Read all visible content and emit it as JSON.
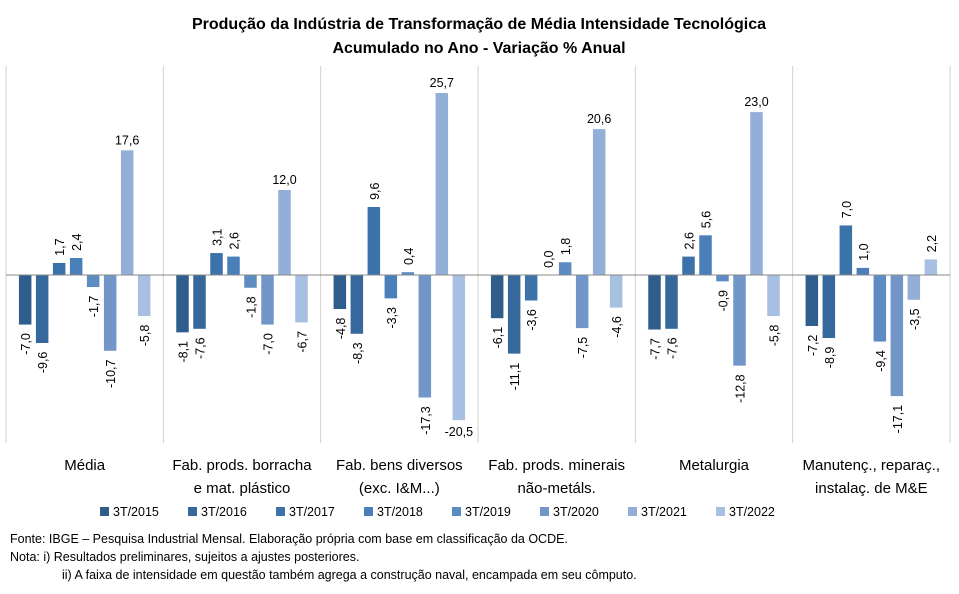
{
  "chart_data": {
    "type": "bar",
    "title": "Produção da Indústria de Transformação de Média Intensidade Tecnológica",
    "subtitle": "Acumulado no Ano - Variação % Anual",
    "categories": [
      [
        "Média"
      ],
      [
        "Fab. prods. borracha",
        "e mat. plástico"
      ],
      [
        "Fab. bens diversos",
        "(exc. I&M...)"
      ],
      [
        "Fab. prods. minerais",
        "não-metáls."
      ],
      [
        "Metalurgia"
      ],
      [
        "Manutenç., reparaç.,",
        "instalaç. de M&E"
      ]
    ],
    "series": [
      {
        "name": "3T/2015",
        "color": "#2f5d8c",
        "values": [
          -7.0,
          -8.1,
          -4.8,
          -6.1,
          -7.7,
          -7.2
        ],
        "labels": [
          "-7,0",
          "-8,1",
          "-4,8",
          "-6,1",
          "-7,7",
          "-7,2"
        ]
      },
      {
        "name": "3T/2016",
        "color": "#36689b",
        "values": [
          -9.6,
          -7.6,
          -8.3,
          -11.1,
          -7.6,
          -8.9
        ],
        "labels": [
          "-9,6",
          "-7,6",
          "-8,3",
          "-11,1",
          "-7,6",
          "-8,9"
        ]
      },
      {
        "name": "3T/2017",
        "color": "#3c72aa",
        "values": [
          1.7,
          3.1,
          9.6,
          -3.6,
          2.6,
          7.0
        ],
        "labels": [
          "1,7",
          "3,1",
          "9,6",
          "-3,6",
          "2,6",
          "7,0"
        ]
      },
      {
        "name": "3T/2018",
        "color": "#4a7fba",
        "values": [
          2.4,
          2.6,
          -3.3,
          0.0,
          5.6,
          1.0
        ],
        "labels": [
          "2,4",
          "2,6",
          "-3,3",
          "0,0",
          "5,6",
          "1,0"
        ]
      },
      {
        "name": "3T/2019",
        "color": "#5d8cc3",
        "values": [
          -1.7,
          -1.8,
          0.4,
          1.8,
          -0.9,
          -9.4
        ],
        "labels": [
          "-1,7",
          "-1,8",
          "0,4",
          "1,8",
          "-0,9",
          "-9,4"
        ]
      },
      {
        "name": "3T/2020",
        "color": "#7396c8",
        "values": [
          -10.7,
          -7.0,
          -17.3,
          -7.5,
          -12.8,
          -17.1
        ],
        "labels": [
          "-10,7",
          "-7,0",
          "-17,3",
          "-7,5",
          "-12,8",
          "-17,1"
        ]
      },
      {
        "name": "3T/2021",
        "color": "#93aed7",
        "values": [
          17.6,
          12.0,
          25.7,
          20.6,
          23.0,
          -3.5
        ],
        "labels": [
          "17,6",
          "12,0",
          "25,7",
          "20,6",
          "23,0",
          "-3,5"
        ]
      },
      {
        "name": "3T/2022",
        "color": "#a7bfe0",
        "values": [
          -5.8,
          -6.7,
          -20.5,
          -4.6,
          -5.8,
          2.2
        ],
        "labels": [
          "-5,8",
          "-6,7",
          "-20,5",
          "-4,6",
          "-5,8",
          "2,2"
        ]
      }
    ],
    "ylim": [
      -23.5,
      30.5
    ],
    "grid": false,
    "legend_position": "bottom"
  },
  "notes": {
    "source": "Fonte: IBGE – Pesquisa Industrial Mensal. Elaboração própria com base em classificação da OCDE.",
    "note1": "Nota: i) Resultados preliminares, sujeitos a ajustes posteriores.",
    "note2": "ii) A faixa de intensidade em questão também agrega a construção naval, encampada em seu cômputo."
  }
}
